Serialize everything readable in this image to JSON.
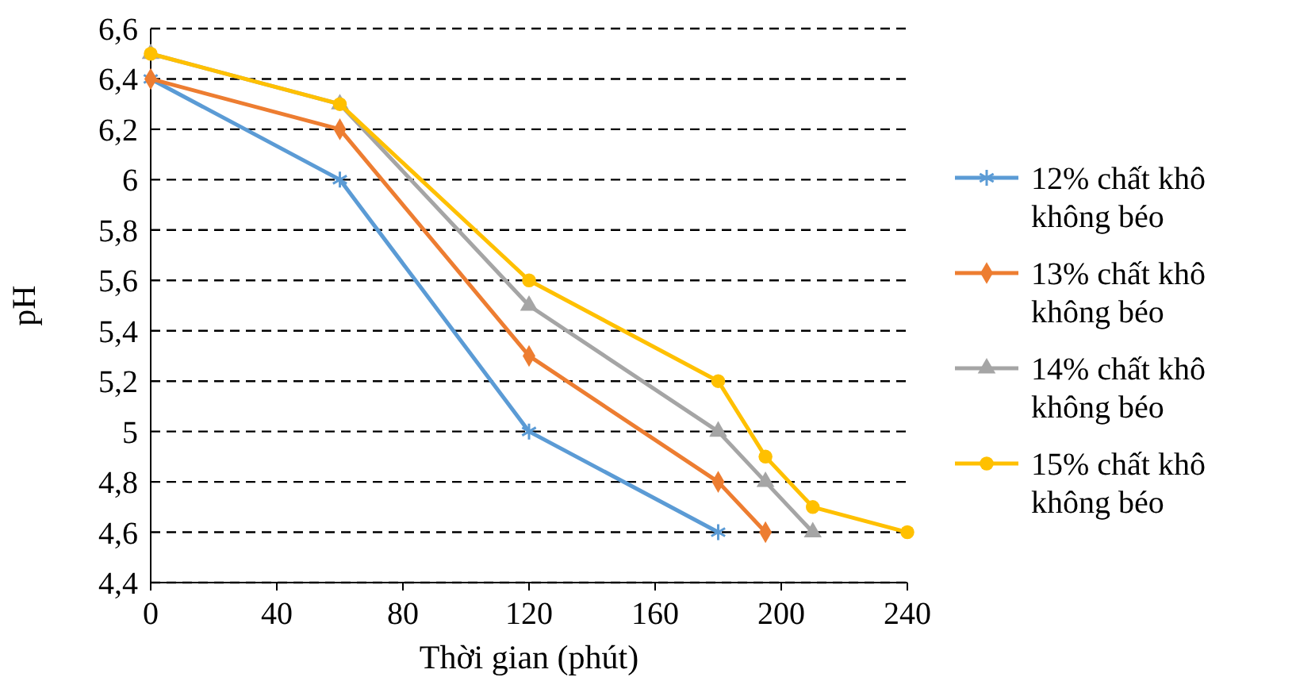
{
  "chart_data": {
    "type": "line",
    "xlabel": "Thời gian (phút)",
    "ylabel": "pH",
    "xlim": [
      0,
      240
    ],
    "xticks": [
      0,
      40,
      80,
      120,
      160,
      200,
      240
    ],
    "ylim": [
      4.4,
      6.6
    ],
    "yticks": [
      {
        "value": 4.4,
        "label": "4,4"
      },
      {
        "value": 4.6,
        "label": "4,6"
      },
      {
        "value": 4.8,
        "label": "4,8"
      },
      5,
      {
        "value": 5.2,
        "label": "5,2"
      },
      {
        "value": 5.4,
        "label": "5,4"
      },
      {
        "value": 5.6,
        "label": "5,6"
      },
      {
        "value": 5.8,
        "label": "5,8"
      },
      6,
      {
        "value": 6.2,
        "label": "6,2"
      },
      {
        "value": 6.4,
        "label": "6,4"
      },
      {
        "value": 6.6,
        "label": "6,6"
      }
    ],
    "grid": "y",
    "line_style": "solid",
    "legend": "right",
    "series": [
      {
        "name": "12% chất khô không béo",
        "color": "#5b9bd5",
        "marker": "cross",
        "x": [
          0,
          60,
          120,
          180
        ],
        "values": [
          6.4,
          6.0,
          5.0,
          4.6
        ]
      },
      {
        "name": "13% chất khô không béo",
        "color": "#ed7d31",
        "marker": "diamond",
        "x": [
          0,
          60,
          120,
          180,
          195
        ],
        "values": [
          6.4,
          6.2,
          5.3,
          4.8,
          4.6
        ]
      },
      {
        "name": "14% chất khô không béo",
        "color": "#a5a5a5",
        "marker": "triangle",
        "x": [
          0,
          60,
          120,
          180,
          195,
          210
        ],
        "values": [
          6.5,
          6.3,
          5.5,
          5.0,
          4.8,
          4.6
        ]
      },
      {
        "name": "15% chất khô không béo",
        "color": "#ffc000",
        "marker": "circle",
        "x": [
          0,
          60,
          120,
          180,
          195,
          210,
          240
        ],
        "values": [
          6.5,
          6.3,
          5.6,
          5.2,
          4.9,
          4.7,
          4.6
        ]
      }
    ]
  }
}
